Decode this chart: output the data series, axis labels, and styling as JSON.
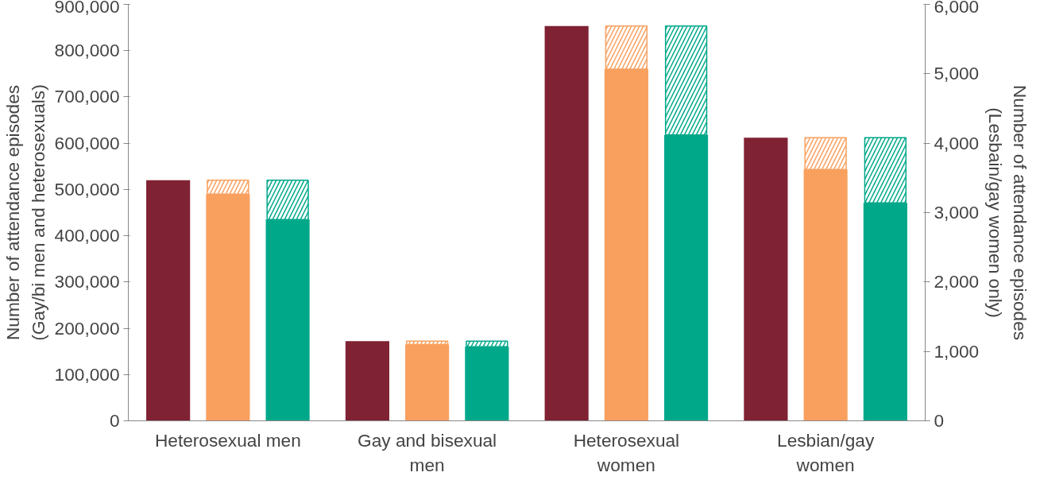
{
  "chart_data": {
    "type": "bar",
    "categories": [
      "Heterosexual men",
      "Gay and bisexual men",
      "Heterosexual women",
      "Lesbian/gay women"
    ],
    "ylabel": "Number of attendance episodes\n(Gay/bi men and heterosexuals)",
    "y2label": "Number of attendance episodes\n(Lesbain/gay women only)",
    "series": [
      {
        "color": "#7f2233",
        "values": [
          520000,
          172000,
          853000,
          null
        ]
      },
      {
        "color": "#f9a05e",
        "values": [
          490000,
          165000,
          760000,
          null
        ]
      },
      {
        "color": "#f9a05e",
        "base": [
          490000,
          165000,
          760000,
          null
        ],
        "values": [
          30000,
          7000,
          93000,
          null
        ]
      },
      {
        "color": "#00a88a",
        "values": [
          435000,
          160000,
          618000,
          null
        ]
      },
      {
        "color": "#00a88a",
        "base": [
          435000,
          160000,
          618000,
          null
        ],
        "values": [
          85000,
          12000,
          235000,
          null
        ]
      },
      {
        "color": "#7f2233",
        "axis": "y2",
        "values": [
          null,
          null,
          null,
          4080
        ]
      },
      {
        "color": "#f9a05e",
        "axis": "y2",
        "values": [
          null,
          null,
          null,
          3620
        ]
      },
      {
        "color": "#f9a05e",
        "axis": "y2",
        "base": [
          null,
          null,
          null,
          3620
        ],
        "values": [
          null,
          null,
          null,
          460
        ]
      },
      {
        "color": "#00a88a",
        "axis": "y2",
        "values": [
          null,
          null,
          null,
          3140
        ]
      },
      {
        "color": "#00a88a",
        "axis": "y2",
        "base": [
          null,
          null,
          null,
          3140
        ],
        "values": [
          null,
          null,
          null,
          940
        ]
      }
    ],
    "ylim": [
      0,
      900000
    ],
    "yticks": [
      {
        "value": 0,
        "label": "0"
      },
      {
        "value": 100000,
        "label": "100,000"
      },
      {
        "value": 200000,
        "label": "200,000"
      },
      {
        "value": 300000,
        "label": "300,000"
      },
      {
        "value": 400000,
        "label": "400,000"
      },
      {
        "value": 500000,
        "label": "500,000"
      },
      {
        "value": 600000,
        "label": "600,000"
      },
      {
        "value": 700000,
        "label": "700,000"
      },
      {
        "value": 800000,
        "label": "800,000"
      },
      {
        "value": 900000,
        "label": "900,000"
      }
    ],
    "y2lim": [
      0,
      6000
    ],
    "y2ticks": [
      {
        "value": 0,
        "label": "0"
      },
      {
        "value": 1000,
        "label": "1,000"
      },
      {
        "value": 2000,
        "label": "2,000"
      },
      {
        "value": 3000,
        "label": "3,000"
      },
      {
        "value": 4000,
        "label": "4,000"
      },
      {
        "value": 5000,
        "label": "5,000"
      },
      {
        "value": 6000,
        "label": "6,000"
      }
    ],
    "grid": false
  }
}
